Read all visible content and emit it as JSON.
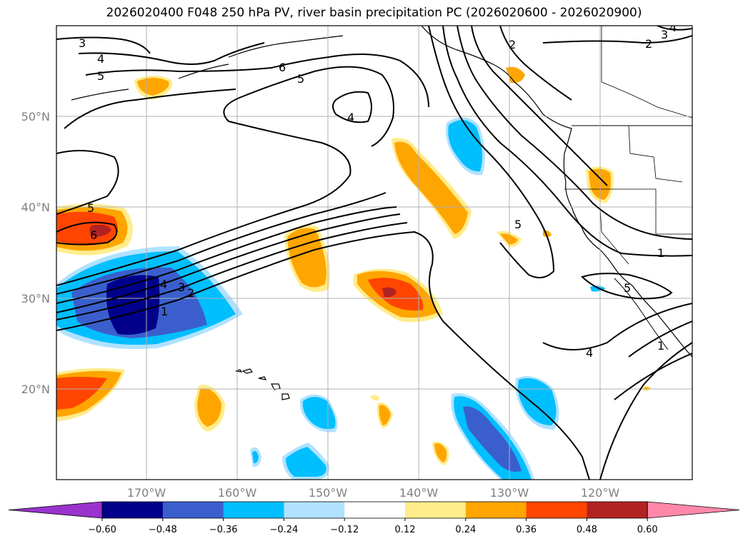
{
  "title": "2026020400 F048 250 hPa PV, river basin precipitation PC (2026020600 - 2026020900)",
  "axes": {
    "lat_labels": [
      "50°N",
      "40°N",
      "30°N",
      "20°N"
    ],
    "lon_labels": [
      "170°W",
      "160°W",
      "150°W",
      "140°W",
      "130°W",
      "120°W"
    ]
  },
  "contour_labels": [
    "3",
    "4",
    "5",
    "6",
    "5",
    "4",
    "2",
    "2",
    "3",
    "4",
    "5",
    "6",
    "4",
    "3",
    "2",
    "1",
    "5",
    "1",
    "5",
    "4",
    "1"
  ],
  "colorbar": {
    "ticks": [
      "−0.60",
      "−0.48",
      "−0.36",
      "−0.24",
      "−0.12",
      "0.12",
      "0.24",
      "0.36",
      "0.48",
      "0.60"
    ],
    "colors": [
      "#9933cc",
      "#00008b",
      "#3a5fcd",
      "#00bfff",
      "#b0e2ff",
      "#ffffff",
      "#ffec8b",
      "#ffa500",
      "#ff4500",
      "#b22222",
      "#ff88aa"
    ]
  },
  "colors": {
    "grid": "#b0b0b0",
    "contour": "#000000",
    "label": "#808080"
  }
}
